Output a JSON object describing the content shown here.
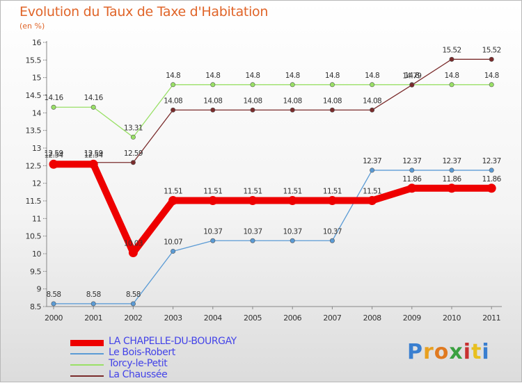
{
  "header": {
    "title": "Evolution du Taux de Taxe d'Habitation",
    "subtitle": "(en %)"
  },
  "chart_data": {
    "type": "line",
    "title": "Evolution du Taux de Taxe d'Habitation",
    "ylabel": "(en %)",
    "xlabel": "",
    "categories": [
      "2000",
      "2001",
      "2002",
      "2003",
      "2004",
      "2005",
      "2006",
      "2007",
      "2008",
      "2009",
      "2010",
      "2011"
    ],
    "ylim": [
      8.5,
      16
    ],
    "yticks": [
      "8.5",
      "9",
      "9.5",
      "10",
      "10.5",
      "11",
      "11.5",
      "12",
      "12.5",
      "13",
      "13.5",
      "14",
      "14.5",
      "15",
      "15.5",
      "16"
    ],
    "series": [
      {
        "name": "LA CHAPELLE-DU-BOURGAY",
        "color": "#ee0000",
        "values": [
          12.54,
          12.54,
          10.03,
          11.51,
          11.51,
          11.51,
          11.51,
          11.51,
          11.51,
          11.86,
          11.86,
          11.86
        ],
        "labels": [
          "12.54",
          "12.54",
          "10.03",
          "11.51",
          "11.51",
          "11.51",
          "11.51",
          "11.51",
          "11.51",
          "11.86",
          "11.86",
          "11.86"
        ]
      },
      {
        "name": "Le Bois-Robert",
        "color": "#5b9bd5",
        "values": [
          8.58,
          8.58,
          8.58,
          10.07,
          10.37,
          10.37,
          10.37,
          10.37,
          12.37,
          12.37,
          12.37,
          12.37
        ],
        "labels": [
          "8.58",
          "8.58",
          "8.58",
          "10.07",
          "10.37",
          "10.37",
          "10.37",
          "10.37",
          "12.37",
          "12.37",
          "12.37",
          "12.37"
        ]
      },
      {
        "name": "Torcy-le-Petit",
        "color": "#99e066",
        "values": [
          14.16,
          14.16,
          13.31,
          14.8,
          14.8,
          14.8,
          14.8,
          14.8,
          14.8,
          14.8,
          14.8,
          14.8
        ],
        "labels": [
          "14.16",
          "14.16",
          "13.31",
          "14.8",
          "14.8",
          "14.8",
          "14.8",
          "14.8",
          "14.8",
          "14.8",
          "14.8",
          "14.8"
        ]
      },
      {
        "name": "La Chaussée",
        "color": "#7a2b2b",
        "values": [
          12.59,
          12.59,
          12.59,
          14.08,
          14.08,
          14.08,
          14.08,
          14.08,
          14.08,
          14.79,
          15.52,
          15.52
        ],
        "labels": [
          "12.59",
          "12.59",
          "12.59",
          "14.08",
          "14.08",
          "14.08",
          "14.08",
          "14.08",
          "14.08",
          "14.79",
          "15.52",
          "15.52"
        ]
      }
    ],
    "legend_position": "bottom-left",
    "grid": false
  },
  "brand": {
    "text": "Proxiti",
    "letter_colors": [
      "#3a7fd0",
      "#e8a020",
      "#e07a20",
      "#3aa040",
      "#c83030",
      "#e8c020",
      "#3a7fd0"
    ]
  }
}
